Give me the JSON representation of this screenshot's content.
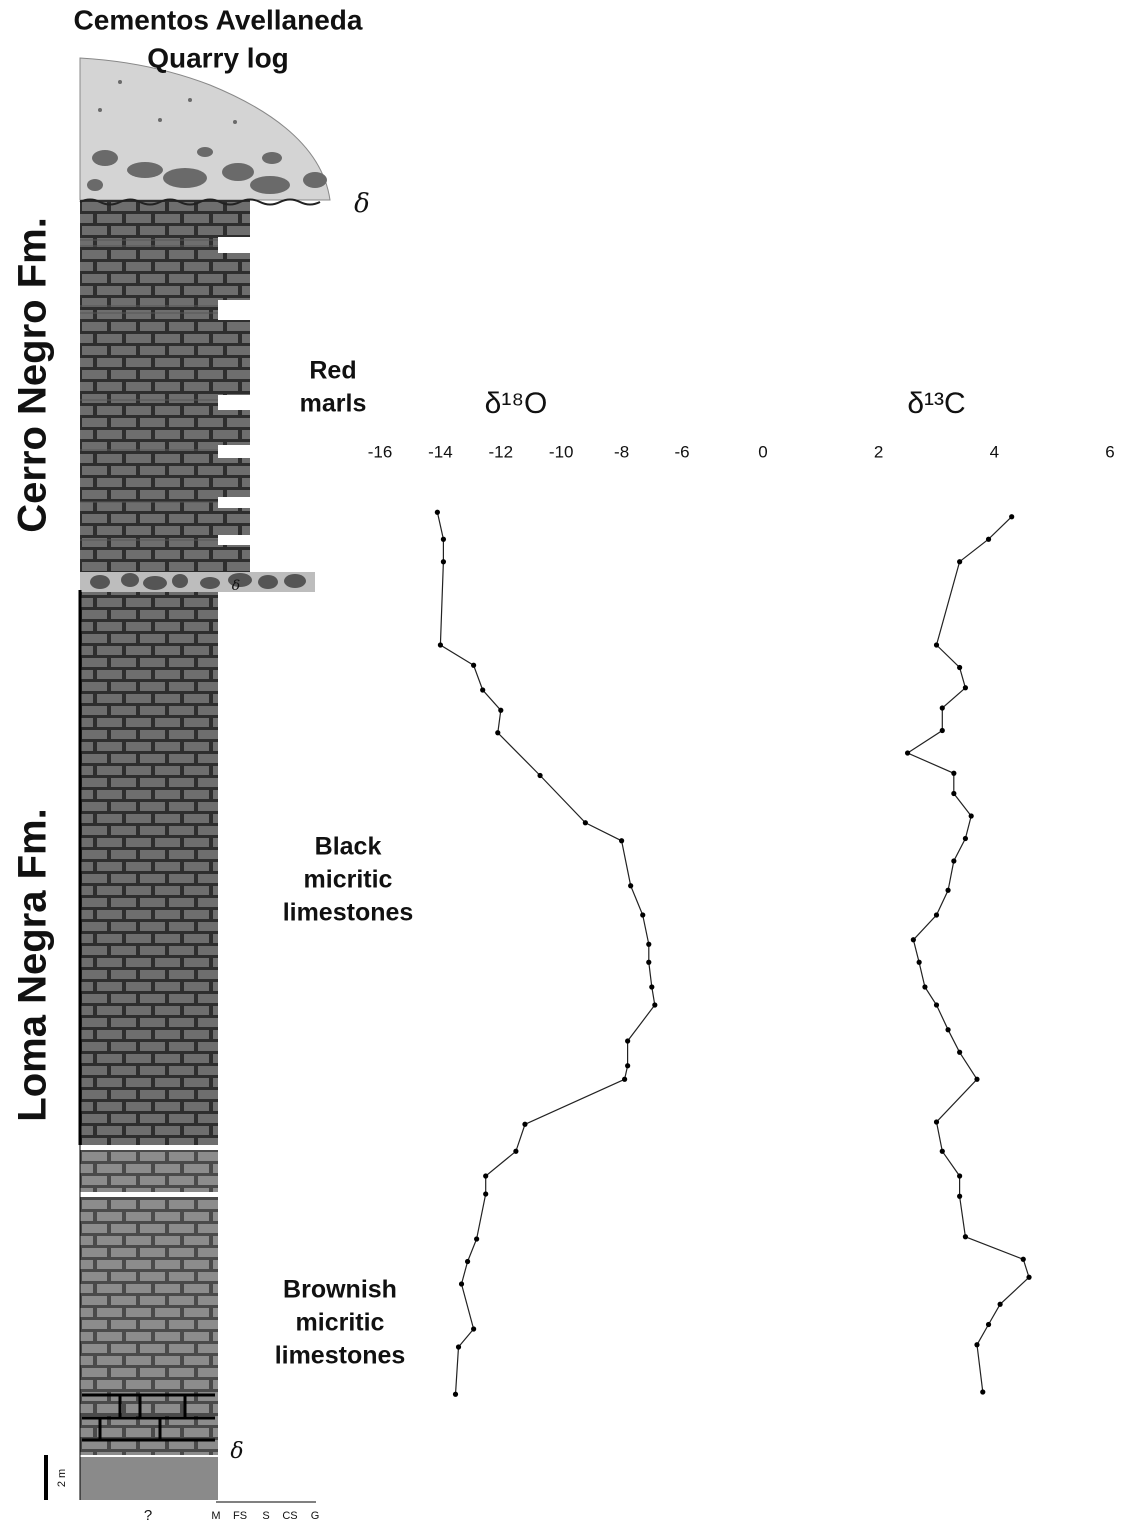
{
  "log": {
    "title": [
      "Cementos Avellaneda",
      "Quarry log"
    ],
    "formations": [
      "Cerro Negro Fm.",
      "Loma Negra Fm."
    ],
    "lithology": [
      [
        "Red",
        "marls"
      ],
      [
        "Black",
        "micritic",
        "limestones"
      ],
      [
        "Brownish",
        "micritic",
        "limestones"
      ]
    ],
    "unconformities": [
      "δ",
      "δ",
      "δ"
    ],
    "scale": "2 m",
    "grain_size": [
      "?",
      "M",
      "FS",
      "S",
      "CS",
      "G"
    ]
  },
  "chart_data": [
    {
      "type": "line",
      "title": "δ¹⁸O",
      "color": "#222",
      "x": [
        -14.1,
        -13.9,
        -13.9,
        -14.0,
        -12.9,
        -12.6,
        -12.0,
        -12.1,
        -10.7,
        -9.2,
        -8.0,
        -7.7,
        -7.3,
        -7.1,
        -7.1,
        -7.0,
        -6.9,
        -7.8,
        -7.8,
        -7.9,
        -11.2,
        -11.5,
        -12.5,
        -12.5,
        -12.8,
        -13.1,
        -13.3,
        -12.9,
        -13.4,
        -13.5
      ],
      "y": [
        43.9,
        42.7,
        41.7,
        38.0,
        37.1,
        36.0,
        35.1,
        34.1,
        32.2,
        30.1,
        29.3,
        27.3,
        26.0,
        24.7,
        23.9,
        22.8,
        22.0,
        20.4,
        19.3,
        18.7,
        16.7,
        15.5,
        14.4,
        13.6,
        11.6,
        10.6,
        9.6,
        7.6,
        6.8,
        4.7
      ],
      "xlim": [
        -16,
        -6
      ],
      "xticks": [
        -16,
        -14,
        -12,
        -10,
        -8,
        -6
      ],
      "ylim": [
        0,
        64
      ]
    },
    {
      "type": "line",
      "title": "δ¹³C",
      "color": "#222",
      "x": [
        4.3,
        3.9,
        3.4,
        3.0,
        3.4,
        3.5,
        3.1,
        3.1,
        2.5,
        3.3,
        3.3,
        3.6,
        3.5,
        3.3,
        3.2,
        3.0,
        2.6,
        2.7,
        2.8,
        3.0,
        3.2,
        3.4,
        3.7,
        3.0,
        3.1,
        3.4,
        3.4,
        3.5,
        4.5,
        4.6,
        4.1,
        3.9,
        3.7,
        3.8
      ],
      "y": [
        43.7,
        42.7,
        41.7,
        38.0,
        37.0,
        36.1,
        35.2,
        34.2,
        33.2,
        32.3,
        31.4,
        30.4,
        29.4,
        28.4,
        27.1,
        26.0,
        24.9,
        23.9,
        22.8,
        22.0,
        20.9,
        19.9,
        18.7,
        16.8,
        15.5,
        14.4,
        13.5,
        11.7,
        10.7,
        9.9,
        8.7,
        7.8,
        6.9,
        4.8
      ],
      "xlim": [
        0,
        6
      ],
      "xticks": [
        0,
        2,
        4,
        6
      ],
      "ylim": [
        0,
        64
      ]
    }
  ]
}
